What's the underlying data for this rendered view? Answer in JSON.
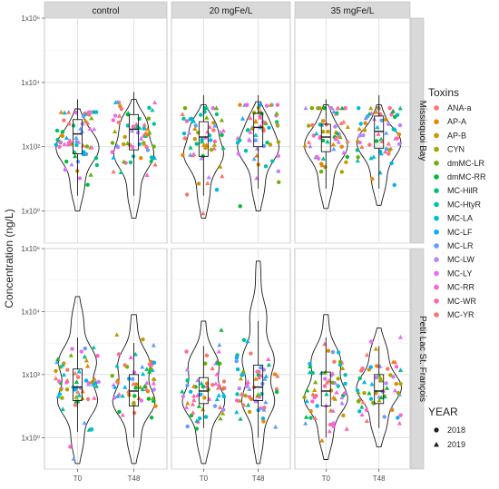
{
  "chart_data": {
    "type": "violin-box-jitter",
    "ylabel": "Concentration (ng/L)",
    "yscale": "log10",
    "ylim": [
      0.1,
      1000000
    ],
    "y_ticks": [
      {
        "value": 1,
        "label": "1x10⁰"
      },
      {
        "value": 100,
        "label": "1x10²"
      },
      {
        "value": 10000,
        "label": "1x10⁴"
      },
      {
        "value": 1000000,
        "label": "1x10⁶"
      }
    ],
    "x_categories": [
      "T0",
      "T48"
    ],
    "facet_columns": [
      "control",
      "20 mgFe/L",
      "35 mgFe/L"
    ],
    "facet_rows": [
      "Missisquoi Bay",
      "Petit Lac St. François"
    ],
    "grid": true,
    "legend_toxins_title": "Toxins",
    "toxins": [
      {
        "name": "ANA-a",
        "color": "#F8766D"
      },
      {
        "name": "AP-A",
        "color": "#E58700"
      },
      {
        "name": "AP-B",
        "color": "#C99800"
      },
      {
        "name": "CYN",
        "color": "#A3A500"
      },
      {
        "name": "dmMC-LR",
        "color": "#6BB100"
      },
      {
        "name": "dmMC-RR",
        "color": "#00BA38"
      },
      {
        "name": "MC-HilR",
        "color": "#00BF7D"
      },
      {
        "name": "MC-HtyR",
        "color": "#00C0AF"
      },
      {
        "name": "MC-LA",
        "color": "#00BCD8"
      },
      {
        "name": "MC-LF",
        "color": "#00B0F6"
      },
      {
        "name": "MC-LR",
        "color": "#619CFF"
      },
      {
        "name": "MC-LW",
        "color": "#B983FF"
      },
      {
        "name": "MC-LY",
        "color": "#E76BF3"
      },
      {
        "name": "MC-RR",
        "color": "#FD61D1"
      },
      {
        "name": "MC-WR",
        "color": "#FF67A4"
      },
      {
        "name": "MC-YR",
        "color": "#F8766D"
      }
    ],
    "legend_year_title": "YEAR",
    "years": [
      {
        "label": "2018",
        "shape": "circle"
      },
      {
        "label": "2019",
        "shape": "triangle"
      }
    ],
    "panels": [
      {
        "row": 0,
        "col": 0,
        "groups": [
          {
            "x": "T0",
            "median": 250,
            "q1": 60,
            "q3": 700,
            "wlo": 3,
            "whi": 3000,
            "min": 1,
            "max": 1500,
            "center": 180,
            "width": 1.0
          },
          {
            "x": "T48",
            "median": 350,
            "q1": 80,
            "q3": 1000,
            "wlo": 3,
            "whi": 5000,
            "min": 0.6,
            "max": 3000,
            "center": 200,
            "width": 1.0
          }
        ]
      },
      {
        "row": 0,
        "col": 1,
        "groups": [
          {
            "x": "T0",
            "median": 200,
            "q1": 50,
            "q3": 600,
            "wlo": 3,
            "whi": 4000,
            "min": 0.6,
            "max": 2000,
            "center": 200,
            "width": 1.0
          },
          {
            "x": "T48",
            "median": 400,
            "q1": 100,
            "q3": 1100,
            "wlo": 5,
            "whi": 4000,
            "min": 1,
            "max": 2500,
            "center": 250,
            "width": 1.0
          }
        ]
      },
      {
        "row": 0,
        "col": 2,
        "groups": [
          {
            "x": "T0",
            "median": 200,
            "q1": 70,
            "q3": 500,
            "wlo": 5,
            "whi": 3000,
            "min": 1.2,
            "max": 2000,
            "center": 200,
            "width": 1.0
          },
          {
            "x": "T48",
            "median": 300,
            "q1": 90,
            "q3": 900,
            "wlo": 5,
            "whi": 4000,
            "min": 1.5,
            "max": 2000,
            "center": 200,
            "width": 1.0
          }
        ]
      },
      {
        "row": 1,
        "col": 0,
        "groups": [
          {
            "x": "T0",
            "median": 40,
            "q1": 15,
            "q3": 150,
            "wlo": 1.5,
            "whi": 1500,
            "min": 0.15,
            "max": 30000,
            "center": 50,
            "width": 1.0
          },
          {
            "x": "T48",
            "median": 30,
            "q1": 10,
            "q3": 100,
            "wlo": 1,
            "whi": 1000,
            "min": 0.15,
            "max": 8000,
            "center": 30,
            "width": 1.0
          }
        ]
      },
      {
        "row": 1,
        "col": 1,
        "groups": [
          {
            "x": "T0",
            "median": 30,
            "q1": 12,
            "q3": 80,
            "wlo": 2,
            "whi": 800,
            "min": 0.15,
            "max": 5000,
            "center": 30,
            "width": 1.0
          },
          {
            "x": "T48",
            "median": 40,
            "q1": 15,
            "q3": 200,
            "wlo": 1,
            "whi": 5000,
            "min": 0.15,
            "max": 400000,
            "center": 40,
            "width": 0.8
          }
        ]
      },
      {
        "row": 1,
        "col": 2,
        "groups": [
          {
            "x": "T0",
            "median": 30,
            "q1": 10,
            "q3": 120,
            "wlo": 1,
            "whi": 1500,
            "min": 0.2,
            "max": 8000,
            "center": 30,
            "width": 1.0
          },
          {
            "x": "T48",
            "median": 30,
            "q1": 12,
            "q3": 100,
            "wlo": 2,
            "whi": 800,
            "min": 0.5,
            "max": 3000,
            "center": 40,
            "width": 1.0
          }
        ]
      }
    ]
  }
}
